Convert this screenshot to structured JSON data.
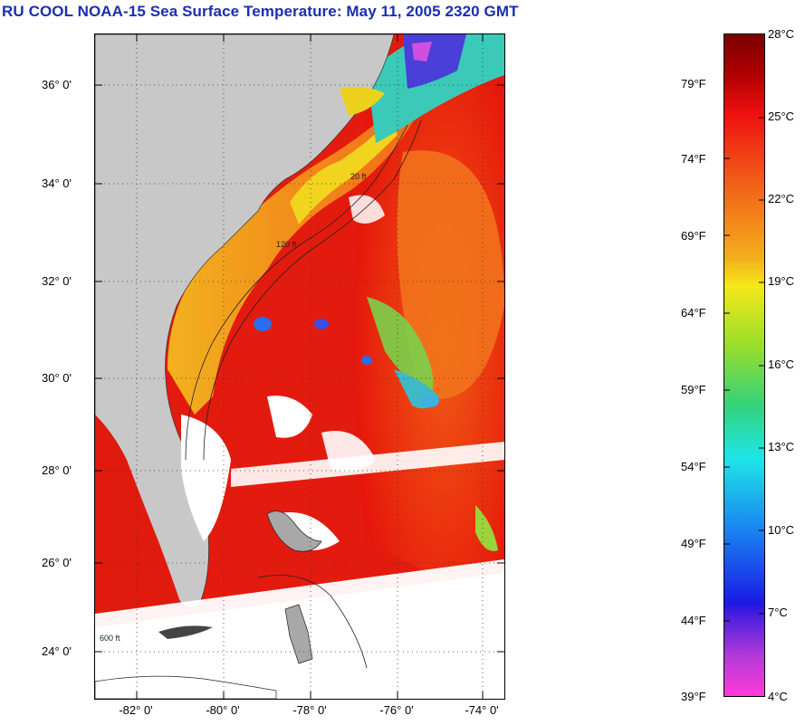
{
  "title": "RU COOL  NOAA-15  Sea Surface Temperature:  May 11, 2005 2320 GMT",
  "map": {
    "lat_labels": [
      "36° 0'",
      "34° 0'",
      "32° 0'",
      "30° 0'",
      "28° 0'",
      "26° 0'",
      "24° 0'"
    ],
    "lon_labels": [
      "-82° 0'",
      "-80° 0'",
      "-78° 0'",
      "-76° 0'",
      "-74° 0'"
    ],
    "isobath_labels": [
      "20 ft",
      "120 ft",
      "600 ft"
    ],
    "colors": {
      "land": "#c8c8c8",
      "cloud": "#ffffff",
      "gulf_stream": "#e8180c",
      "shelf_orange": "#f47a1c",
      "coastal_yellow": "#f2d21a",
      "cold_green": "#2ecf7a",
      "cold_blue": "#1e5cf0"
    }
  },
  "colorbar": {
    "fahrenheit_labels": [
      "79°F",
      "74°F",
      "69°F",
      "64°F",
      "59°F",
      "54°F",
      "49°F",
      "44°F",
      "39°F"
    ],
    "celsius_labels": [
      "28°C",
      "25°C",
      "22°C",
      "19°C",
      "16°C",
      "13°C",
      "10°C",
      "7°C",
      "4°C"
    ],
    "range_c": [
      4,
      28
    ],
    "range_f": [
      39,
      82
    ]
  }
}
